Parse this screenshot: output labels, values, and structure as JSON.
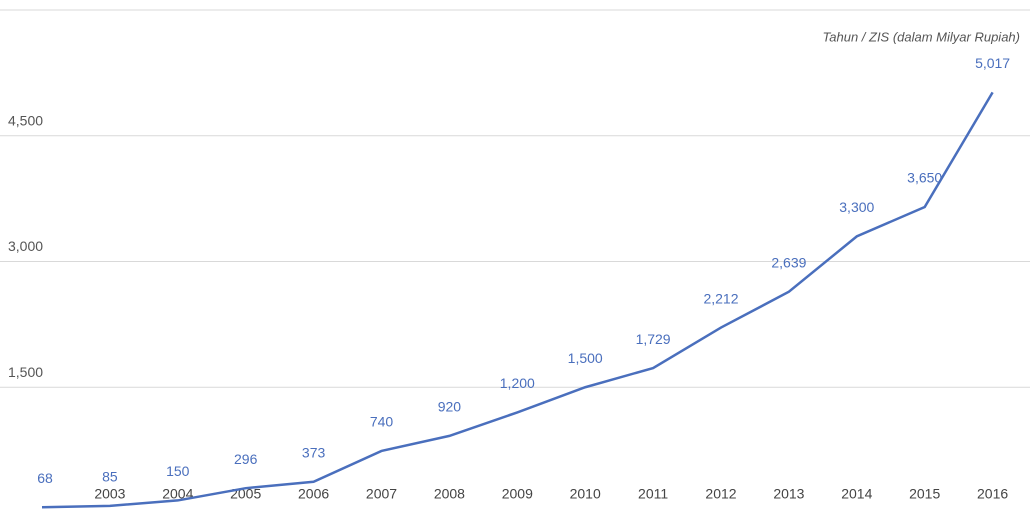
{
  "chart_data": {
    "type": "line",
    "annotation": "Tahun / ZIS (dalam Milyar Rupiah)",
    "categories": [
      null,
      "2003",
      "2004",
      "2005",
      "2006",
      "2007",
      "2008",
      "2009",
      "2010",
      "2011",
      "2012",
      "2013",
      "2014",
      "2015",
      "2016"
    ],
    "series": [
      {
        "name": "ZIS",
        "color": "#4a6fbd",
        "values": [
          68,
          85,
          150,
          296,
          373,
          740,
          920,
          1200,
          1500,
          1729,
          2212,
          2639,
          3300,
          3650,
          5017
        ],
        "value_labels": [
          "68",
          "85",
          "150",
          "296",
          "373",
          "740",
          "920",
          "1,200",
          "1,500",
          "1,729",
          "2,212",
          "2,639",
          "3,300",
          "3,650",
          "5,017"
        ]
      }
    ],
    "ylim": [
      0,
      6000
    ],
    "yticks": [
      {
        "value": 1500,
        "label": "1,500"
      },
      {
        "value": 3000,
        "label": "3,000"
      },
      {
        "value": 4500,
        "label": "4,500"
      }
    ],
    "grid": true
  }
}
